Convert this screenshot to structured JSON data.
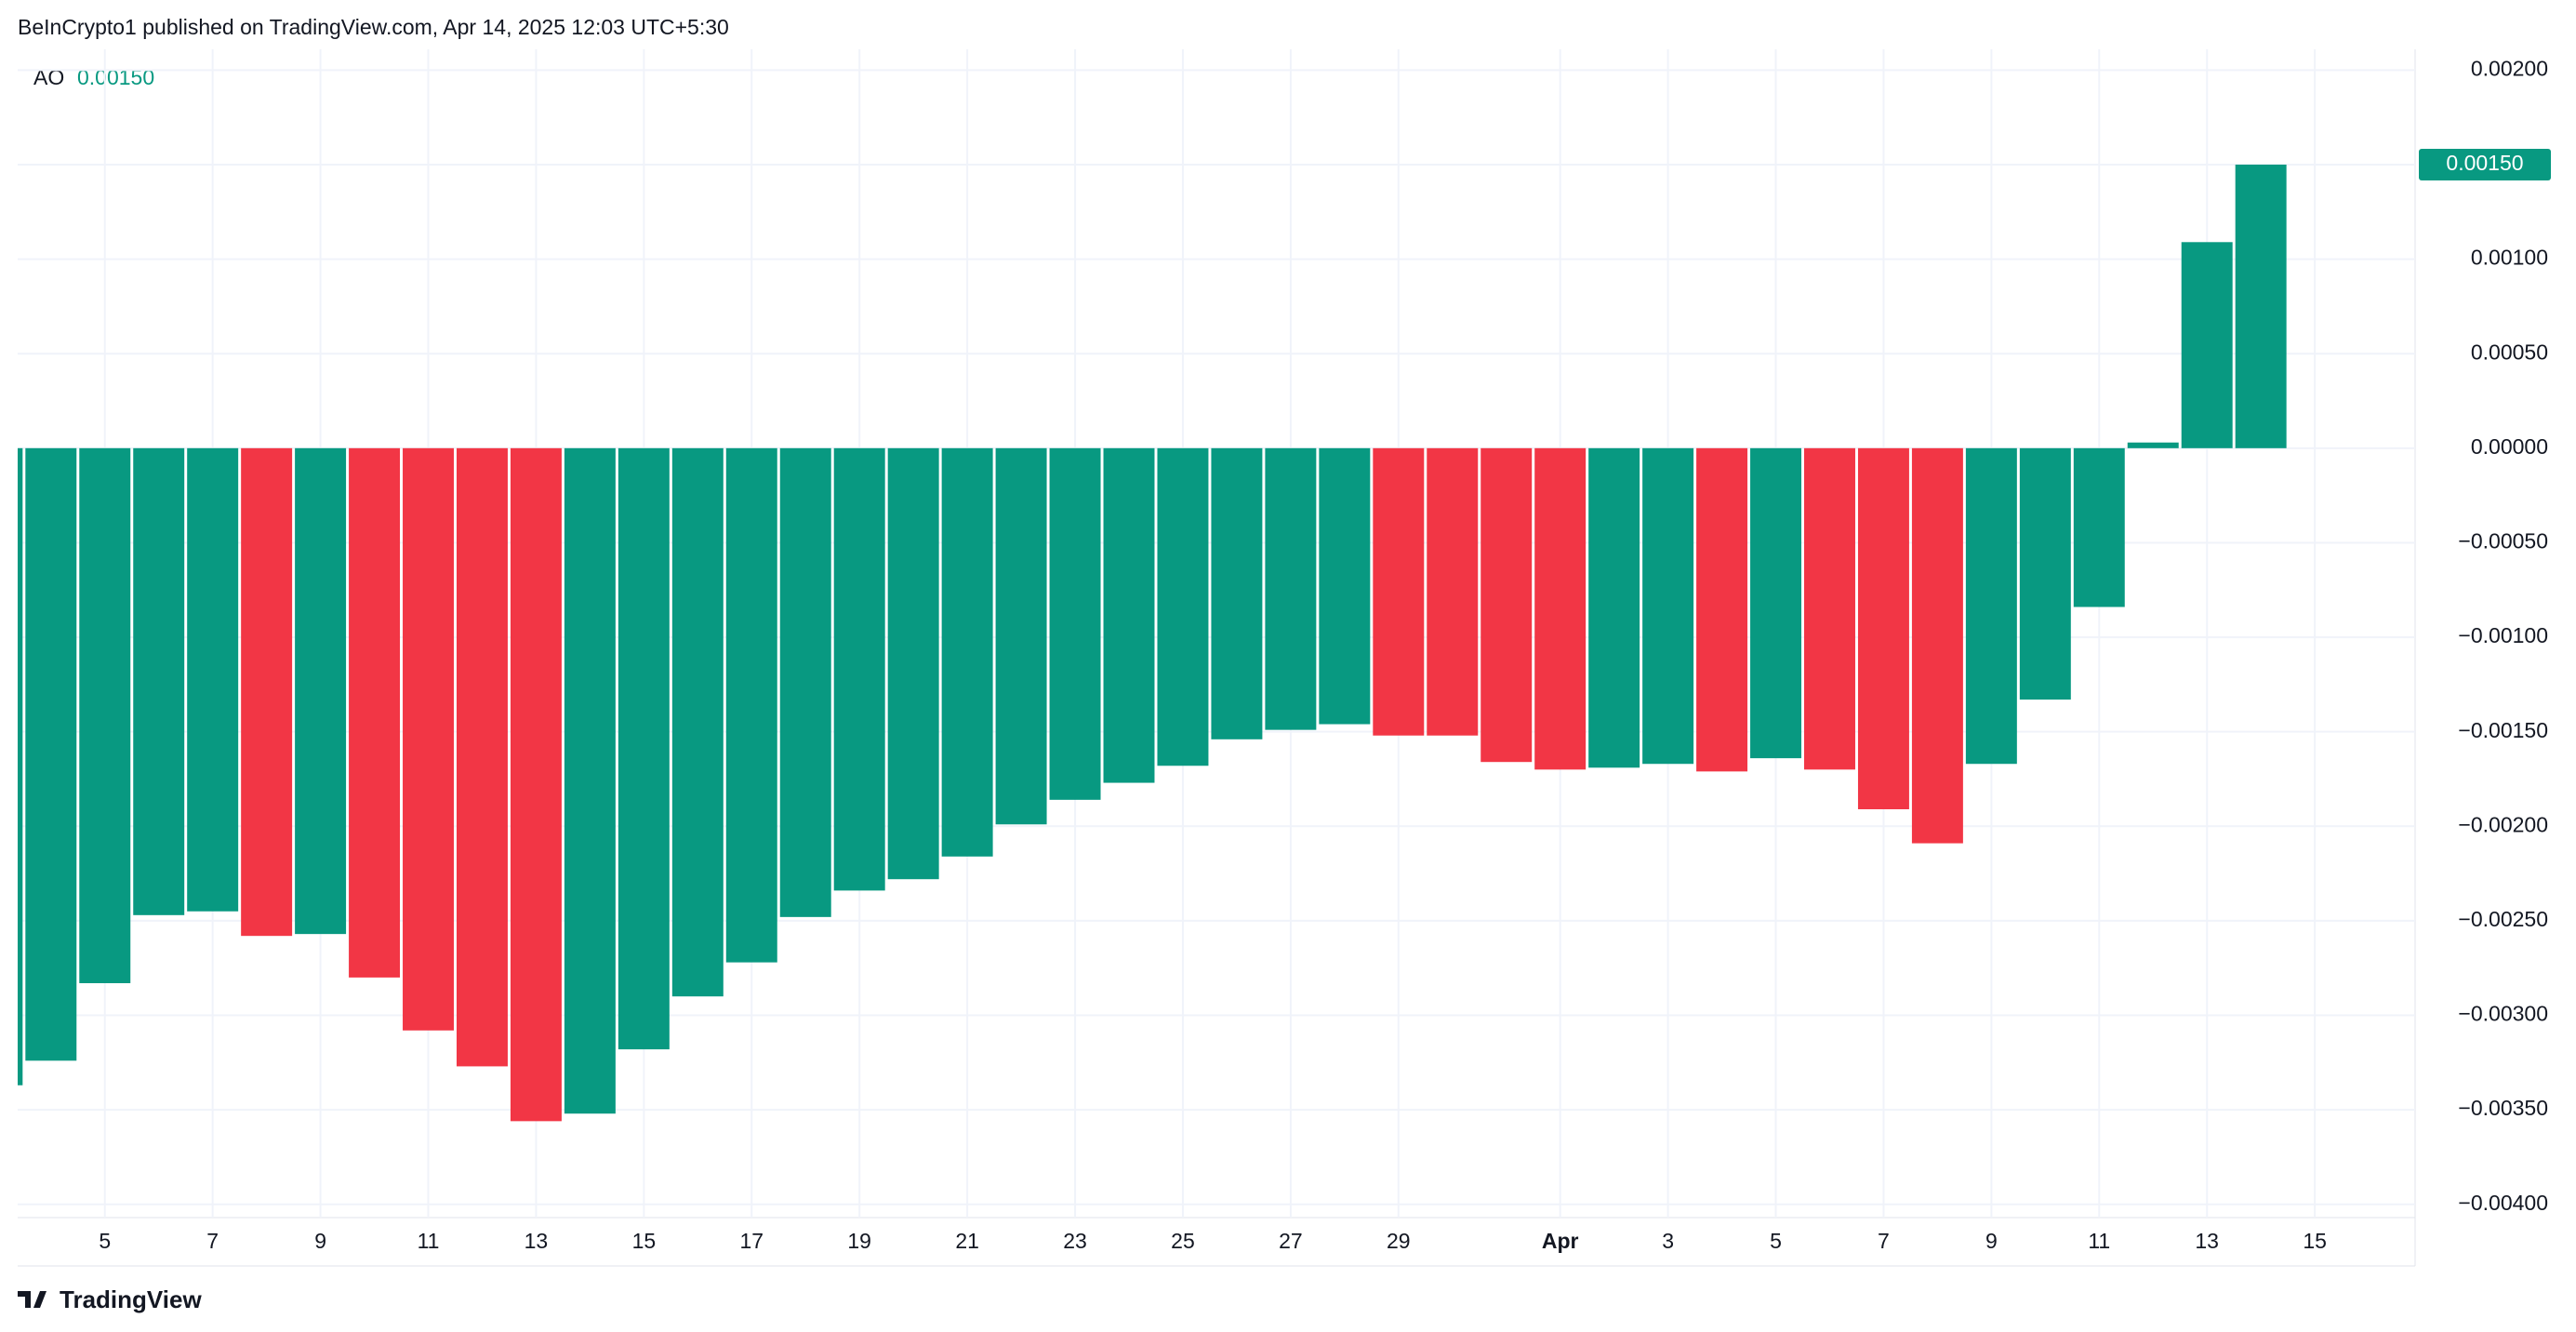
{
  "header": "BeInCrypto1 published on TradingView.com, Apr 14, 2025 12:03 UTC+5:30",
  "footer": "TradingView",
  "chart_data": {
    "type": "bar",
    "legend_name": "AO",
    "last_value_label": "0.00150",
    "categories": [
      null,
      null,
      "5",
      null,
      "7",
      null,
      "9",
      null,
      "11",
      null,
      "13",
      null,
      "15",
      null,
      "17",
      null,
      "19",
      null,
      "21",
      null,
      "23",
      null,
      "25",
      null,
      "27",
      null,
      "29",
      null,
      null,
      "Apr",
      null,
      "3",
      null,
      "5",
      null,
      "7",
      null,
      "9",
      null,
      "11",
      null,
      "13",
      null
    ],
    "values": [
      -0.00337,
      -0.00324,
      -0.00283,
      -0.00247,
      -0.00245,
      -0.00258,
      -0.00257,
      -0.0028,
      -0.00308,
      -0.00327,
      -0.00356,
      -0.00352,
      -0.00318,
      -0.0029,
      -0.00272,
      -0.00248,
      -0.00234,
      -0.00228,
      -0.00216,
      -0.00199,
      -0.00186,
      -0.00177,
      -0.00168,
      -0.00154,
      -0.00149,
      -0.00146,
      -0.00152,
      -0.00152,
      -0.00166,
      -0.0017,
      -0.00169,
      -0.00167,
      -0.00171,
      -0.00164,
      -0.0017,
      -0.00191,
      -0.00209,
      -0.00167,
      -0.00133,
      -0.00084,
      3e-05,
      0.00109,
      0.0015
    ],
    "bar_colors": [
      "#089981",
      "#089981",
      "#089981",
      "#089981",
      "#089981",
      "#f23645",
      "#089981",
      "#f23645",
      "#f23645",
      "#f23645",
      "#f23645",
      "#089981",
      "#089981",
      "#089981",
      "#089981",
      "#089981",
      "#089981",
      "#089981",
      "#089981",
      "#089981",
      "#089981",
      "#089981",
      "#089981",
      "#089981",
      "#089981",
      "#089981",
      "#f23645",
      "#f23645",
      "#f23645",
      "#f23645",
      "#089981",
      "#089981",
      "#f23645",
      "#089981",
      "#f23645",
      "#f23645",
      "#f23645",
      "#089981",
      "#089981",
      "#089981",
      "#089981",
      "#089981",
      "#089981"
    ],
    "extra_x_ticks": [
      "15"
    ],
    "ylim": [
      -0.00407,
      0.00211
    ],
    "yticks": [
      {
        "value": 0.002,
        "label": "0.00200"
      },
      {
        "value": 0.0015,
        "label": "0.00150"
      },
      {
        "value": 0.001,
        "label": "0.00100"
      },
      {
        "value": 0.0005,
        "label": "0.00050"
      },
      {
        "value": 0,
        "label": "0.00000"
      },
      {
        "value": -0.0005,
        "label": "−0.00050"
      },
      {
        "value": -0.001,
        "label": "−0.00100"
      },
      {
        "value": -0.0015,
        "label": "−0.00150"
      },
      {
        "value": -0.002,
        "label": "−0.00200"
      },
      {
        "value": -0.0025,
        "label": "−0.00250"
      },
      {
        "value": -0.003,
        "label": "−0.00300"
      },
      {
        "value": -0.0035,
        "label": "−0.00350"
      },
      {
        "value": -0.004,
        "label": "−0.00400"
      }
    ],
    "grid": true
  }
}
